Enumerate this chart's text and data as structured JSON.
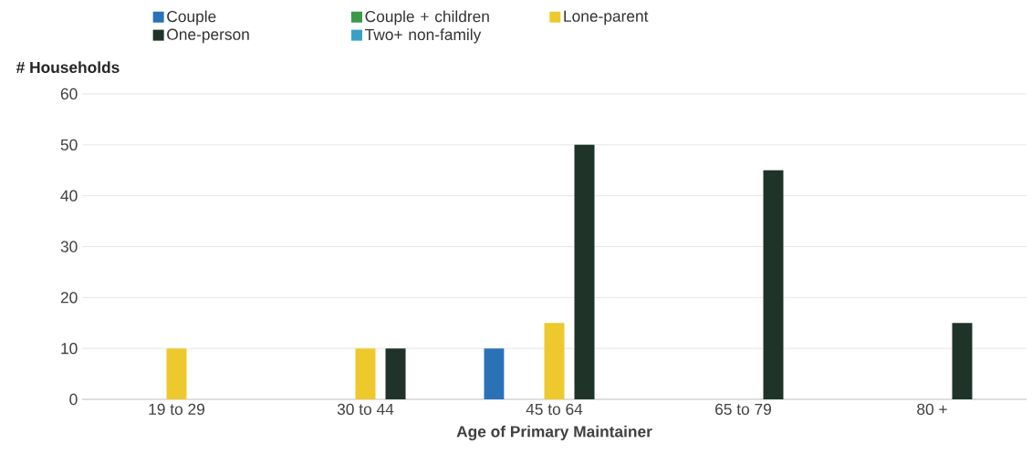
{
  "chart_data": {
    "type": "bar",
    "xlabel": "Age of Primary Maintainer",
    "ylabel": "# Households",
    "categories": [
      "19 to 29",
      "30 to 44",
      "45 to 64",
      "65 to 79",
      "80 +"
    ],
    "series": [
      {
        "name": "Couple",
        "color": "#2a72b5",
        "values": [
          null,
          null,
          10,
          null,
          null
        ]
      },
      {
        "name": "Couple + children",
        "color": "#3a9a4a",
        "values": [
          null,
          null,
          null,
          null,
          null
        ]
      },
      {
        "name": "Lone-parent",
        "color": "#eec92e",
        "values": [
          10,
          10,
          15,
          null,
          null
        ]
      },
      {
        "name": "One-person",
        "color": "#1f3329",
        "values": [
          null,
          10,
          50,
          45,
          15
        ]
      },
      {
        "name": "Two+ non-family",
        "color": "#3aa0c8",
        "values": [
          null,
          null,
          null,
          null,
          null
        ]
      }
    ],
    "ylim": [
      0,
      60
    ],
    "yticks": [
      0,
      10,
      20,
      30,
      40,
      50,
      60
    ],
    "grid": "y",
    "legend": "top"
  }
}
